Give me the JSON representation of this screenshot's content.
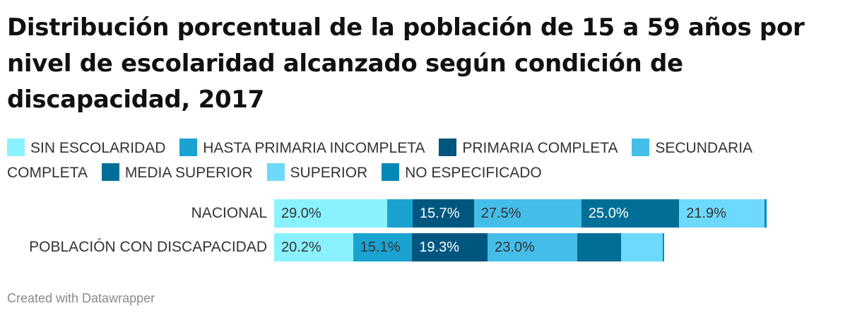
{
  "title": "Distribución porcentual de la población de 15 a 59 años por nivel de escolaridad alcanzado según condición de discapacidad, 2017",
  "footer": "Created with Datawrapper",
  "chart_data": {
    "type": "bar",
    "orientation": "horizontal",
    "stacked": true,
    "title": "Distribución porcentual de la población de 15 a 59 años por nivel de escolaridad alcanzado según condición de discapacidad, 2017",
    "xlabel": "",
    "ylabel": "",
    "categories": [
      "NACIONAL",
      "POBLACIÓN CON DISCAPACIDAD"
    ],
    "xlim": [
      0,
      150
    ],
    "legend_position": "top",
    "grid": false,
    "series": [
      {
        "name": "SIN ESCOLARIDAD",
        "color": "#8af2ff",
        "values": [
          29.0,
          20.2
        ],
        "labels": [
          "29.0%",
          "20.2%"
        ]
      },
      {
        "name": "HASTA PRIMARIA INCOMPLETA",
        "color": "#1aa3d0",
        "values": [
          6.4,
          15.1
        ],
        "labels": [
          "",
          "15.1%"
        ]
      },
      {
        "name": "PRIMARIA COMPLETA",
        "color": "#00567f",
        "values": [
          15.7,
          19.3
        ],
        "labels": [
          "15.7%",
          "19.3%"
        ]
      },
      {
        "name": "SECUNDARIA COMPLETA",
        "color": "#45bde9",
        "values": [
          27.5,
          23.0
        ],
        "labels": [
          "27.5%",
          "23.0%"
        ]
      },
      {
        "name": "MEDIA SUPERIOR",
        "color": "#006f98",
        "values": [
          25.0,
          11.2
        ],
        "labels": [
          "25.0%",
          ""
        ]
      },
      {
        "name": "SUPERIOR",
        "color": "#6dd9fd",
        "values": [
          21.9,
          10.6
        ],
        "labels": [
          "21.9%",
          ""
        ]
      },
      {
        "name": "NO ESPECIFICADO",
        "color": "#0489b7",
        "values": [
          0.4,
          0.4
        ],
        "labels": [
          "",
          ""
        ]
      }
    ]
  }
}
